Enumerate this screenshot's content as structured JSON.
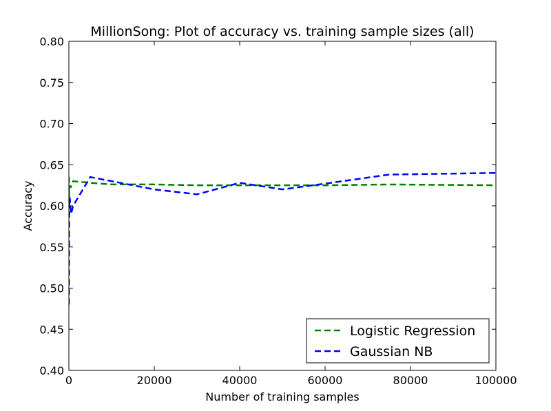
{
  "chart_data": {
    "type": "line",
    "title": "MillionSong: Plot of accuracy vs. training sample sizes (all)",
    "xlabel": "Number of training samples",
    "ylabel": "Accuracy",
    "xlim": [
      0,
      100000
    ],
    "ylim": [
      0.4,
      0.8
    ],
    "xticks": [
      0,
      20000,
      40000,
      60000,
      80000,
      100000
    ],
    "xtick_labels": [
      "0",
      "20000",
      "40000",
      "60000",
      "80000",
      "100000"
    ],
    "yticks": [
      0.4,
      0.45,
      0.5,
      0.55,
      0.6,
      0.65,
      0.7,
      0.75,
      0.8
    ],
    "ytick_labels": [
      "0.40",
      "0.45",
      "0.50",
      "0.55",
      "0.60",
      "0.65",
      "0.70",
      "0.75",
      "0.80"
    ],
    "grid": false,
    "legend": "lower-right",
    "series": [
      {
        "name": "Logistic Regression",
        "color": "#008000",
        "style": "dashed",
        "x": [
          10,
          50,
          100,
          200,
          500,
          1000,
          5000,
          10000,
          20000,
          30000,
          40000,
          50000,
          60000,
          75000,
          100000
        ],
        "y": [
          0.635,
          0.61,
          0.622,
          0.624,
          0.623,
          0.63,
          0.628,
          0.626,
          0.626,
          0.625,
          0.625,
          0.625,
          0.625,
          0.626,
          0.625
        ]
      },
      {
        "name": "Gaussian NB",
        "color": "#0000ff",
        "style": "dashed",
        "x": [
          10,
          50,
          100,
          200,
          500,
          1000,
          5000,
          10000,
          15000,
          20000,
          30000,
          40000,
          50000,
          60000,
          75000,
          100000
        ],
        "y": [
          0.48,
          0.575,
          0.6,
          0.61,
          0.59,
          0.6,
          0.635,
          0.63,
          0.625,
          0.62,
          0.614,
          0.628,
          0.62,
          0.627,
          0.638,
          0.64
        ]
      }
    ]
  }
}
